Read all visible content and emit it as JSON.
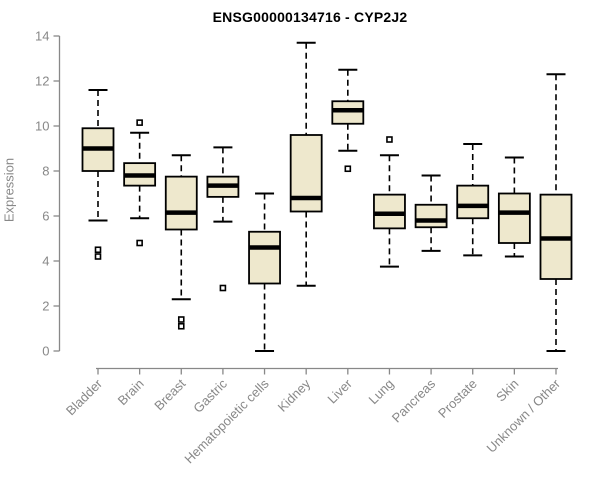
{
  "chart_data": {
    "type": "boxplot",
    "title": "ENSG00000134716 - CYP2J2",
    "ylabel": "Expression",
    "xlabel": "",
    "ylim": [
      0,
      14
    ],
    "yticks": [
      0,
      2,
      4,
      6,
      8,
      10,
      12,
      14
    ],
    "grid": false,
    "legend": "none",
    "categories": [
      "Bladder",
      "Brain",
      "Breast",
      "Gastric",
      "Hematopoietic cells",
      "Kidney",
      "Liver",
      "Lung",
      "Pancreas",
      "Prostate",
      "Skin",
      "Unknown / Other"
    ],
    "series": [
      {
        "name": "Bladder",
        "whisker_low": 5.8,
        "q1": 8.0,
        "median": 9.0,
        "q3": 9.9,
        "whisker_high": 11.6,
        "outliers": [
          4.5,
          4.2
        ]
      },
      {
        "name": "Brain",
        "whisker_low": 5.9,
        "q1": 7.35,
        "median": 7.8,
        "q3": 8.35,
        "whisker_high": 9.7,
        "outliers": [
          10.15,
          4.8
        ]
      },
      {
        "name": "Breast",
        "whisker_low": 2.3,
        "q1": 5.4,
        "median": 6.15,
        "q3": 7.75,
        "whisker_high": 8.7,
        "outliers": [
          1.4,
          1.1
        ]
      },
      {
        "name": "Gastric",
        "whisker_low": 5.75,
        "q1": 6.85,
        "median": 7.35,
        "q3": 7.75,
        "whisker_high": 9.05,
        "outliers": [
          2.8
        ]
      },
      {
        "name": "Hematopoietic cells",
        "whisker_low": 0.0,
        "q1": 3.0,
        "median": 4.6,
        "q3": 5.3,
        "whisker_high": 7.0,
        "outliers": []
      },
      {
        "name": "Kidney",
        "whisker_low": 2.9,
        "q1": 6.2,
        "median": 6.8,
        "q3": 9.6,
        "whisker_high": 13.7,
        "outliers": []
      },
      {
        "name": "Liver",
        "whisker_low": 8.9,
        "q1": 10.1,
        "median": 10.7,
        "q3": 11.1,
        "whisker_high": 12.5,
        "outliers": [
          8.1
        ]
      },
      {
        "name": "Lung",
        "whisker_low": 3.75,
        "q1": 5.45,
        "median": 6.1,
        "q3": 6.95,
        "whisker_high": 8.7,
        "outliers": [
          9.4
        ]
      },
      {
        "name": "Pancreas",
        "whisker_low": 4.45,
        "q1": 5.5,
        "median": 5.8,
        "q3": 6.5,
        "whisker_high": 7.8,
        "outliers": []
      },
      {
        "name": "Prostate",
        "whisker_low": 4.25,
        "q1": 5.9,
        "median": 6.45,
        "q3": 7.35,
        "whisker_high": 9.2,
        "outliers": []
      },
      {
        "name": "Skin",
        "whisker_low": 4.2,
        "q1": 4.8,
        "median": 6.15,
        "q3": 7.0,
        "whisker_high": 8.6,
        "outliers": []
      },
      {
        "name": "Unknown / Other",
        "whisker_low": 0.0,
        "q1": 3.2,
        "median": 5.0,
        "q3": 6.95,
        "whisker_high": 12.3,
        "outliers": []
      }
    ],
    "colors": {
      "box_fill": "#EEE8CD",
      "box_stroke": "#000000",
      "median_color": "#000000",
      "whisker_color": "#000000",
      "axis_color": "#888888",
      "tick_label_color": "#888888",
      "title_color": "#000000",
      "background": "#ffffff"
    }
  }
}
